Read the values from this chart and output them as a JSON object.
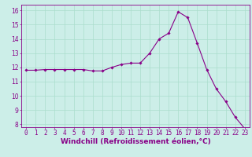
{
  "x": [
    0,
    1,
    2,
    3,
    4,
    5,
    6,
    7,
    8,
    9,
    10,
    11,
    12,
    13,
    14,
    15,
    16,
    17,
    18,
    19,
    20,
    21,
    22,
    23
  ],
  "y": [
    11.8,
    11.8,
    11.85,
    11.85,
    11.85,
    11.85,
    11.85,
    11.75,
    11.75,
    12.0,
    12.2,
    12.3,
    12.3,
    13.0,
    14.0,
    14.4,
    15.9,
    15.5,
    13.7,
    11.85,
    10.5,
    9.6,
    8.5,
    7.7
  ],
  "line_color": "#880088",
  "marker": "D",
  "marker_size": 1.8,
  "bg_color": "#cceee8",
  "grid_color": "#aaddcc",
  "xlabel": "Windchill (Refroidissement éolien,°C)",
  "ylim": [
    7.8,
    16.4
  ],
  "xlim": [
    -0.5,
    23.5
  ],
  "yticks": [
    8,
    9,
    10,
    11,
    12,
    13,
    14,
    15,
    16
  ],
  "xtick_labels": [
    "0",
    "1",
    "2",
    "3",
    "4",
    "5",
    "6",
    "7",
    "8",
    "9",
    "10",
    "11",
    "12",
    "13",
    "14",
    "15",
    "16",
    "17",
    "18",
    "19",
    "20",
    "21",
    "22",
    "23"
  ],
  "tick_color": "#880088",
  "label_color": "#880088",
  "axis_color": "#880088",
  "font_size_xlabel": 6.5,
  "font_size_ticks": 5.5
}
